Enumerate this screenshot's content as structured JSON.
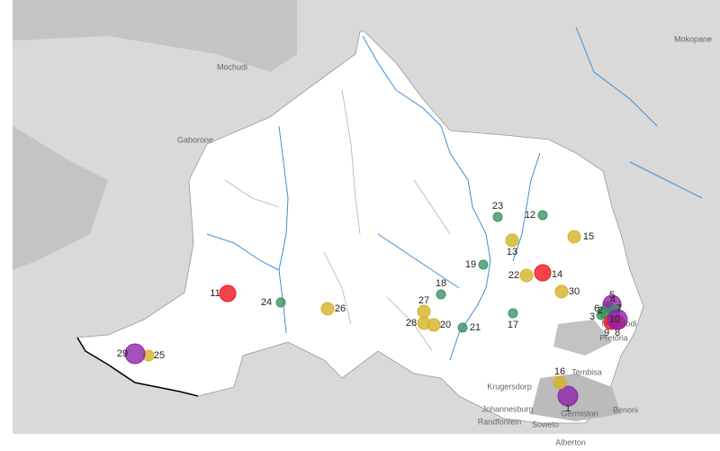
{
  "places": [
    "Mochudi",
    "Gaborone",
    "Mokopane",
    "Pretoria",
    "Mamelodi",
    "Tembisa",
    "Krugersdorp",
    "Johannesburg",
    "Randfontein",
    "Soweto",
    "Germiston",
    "Benoni",
    "Alberton"
  ],
  "markers": [
    {
      "label": "1",
      "color": "#8e24aa"
    },
    {
      "label": "2",
      "color": "#d4b325"
    },
    {
      "label": "3",
      "color": "#3c9466"
    },
    {
      "label": "4",
      "color": "#3c9466"
    },
    {
      "label": "5",
      "color": "#8e24aa"
    },
    {
      "label": "6",
      "color": "#3c9466"
    },
    {
      "label": "7",
      "color": "#3c9466"
    },
    {
      "label": "8",
      "color": "#f0141e"
    },
    {
      "label": "9",
      "color": "#f0141e"
    },
    {
      "label": "10",
      "color": "#8e24aa"
    },
    {
      "label": "11",
      "color": "#f0141e"
    },
    {
      "label": "12",
      "color": "#3c9466"
    },
    {
      "label": "13",
      "color": "#d4b325"
    },
    {
      "label": "14",
      "color": "#f0141e"
    },
    {
      "label": "15",
      "color": "#d4b325"
    },
    {
      "label": "16",
      "color": "#d4b325"
    },
    {
      "label": "17",
      "color": "#3c9466"
    },
    {
      "label": "18",
      "color": "#3c9466"
    },
    {
      "label": "19",
      "color": "#3c9466"
    },
    {
      "label": "20",
      "color": "#d4b325"
    },
    {
      "label": "21",
      "color": "#3c9466"
    },
    {
      "label": "22",
      "color": "#d4b325"
    },
    {
      "label": "23",
      "color": "#3c9466"
    },
    {
      "label": "24",
      "color": "#3c9466"
    },
    {
      "label": "25",
      "color": "#d4b325"
    },
    {
      "label": "26",
      "color": "#d4b325"
    },
    {
      "label": "27",
      "color": "#d4b325"
    },
    {
      "label": "28",
      "color": "#d4b325"
    },
    {
      "label": "29",
      "color": "#8e24aa"
    },
    {
      "label": "30",
      "color": "#d4b325"
    }
  ]
}
